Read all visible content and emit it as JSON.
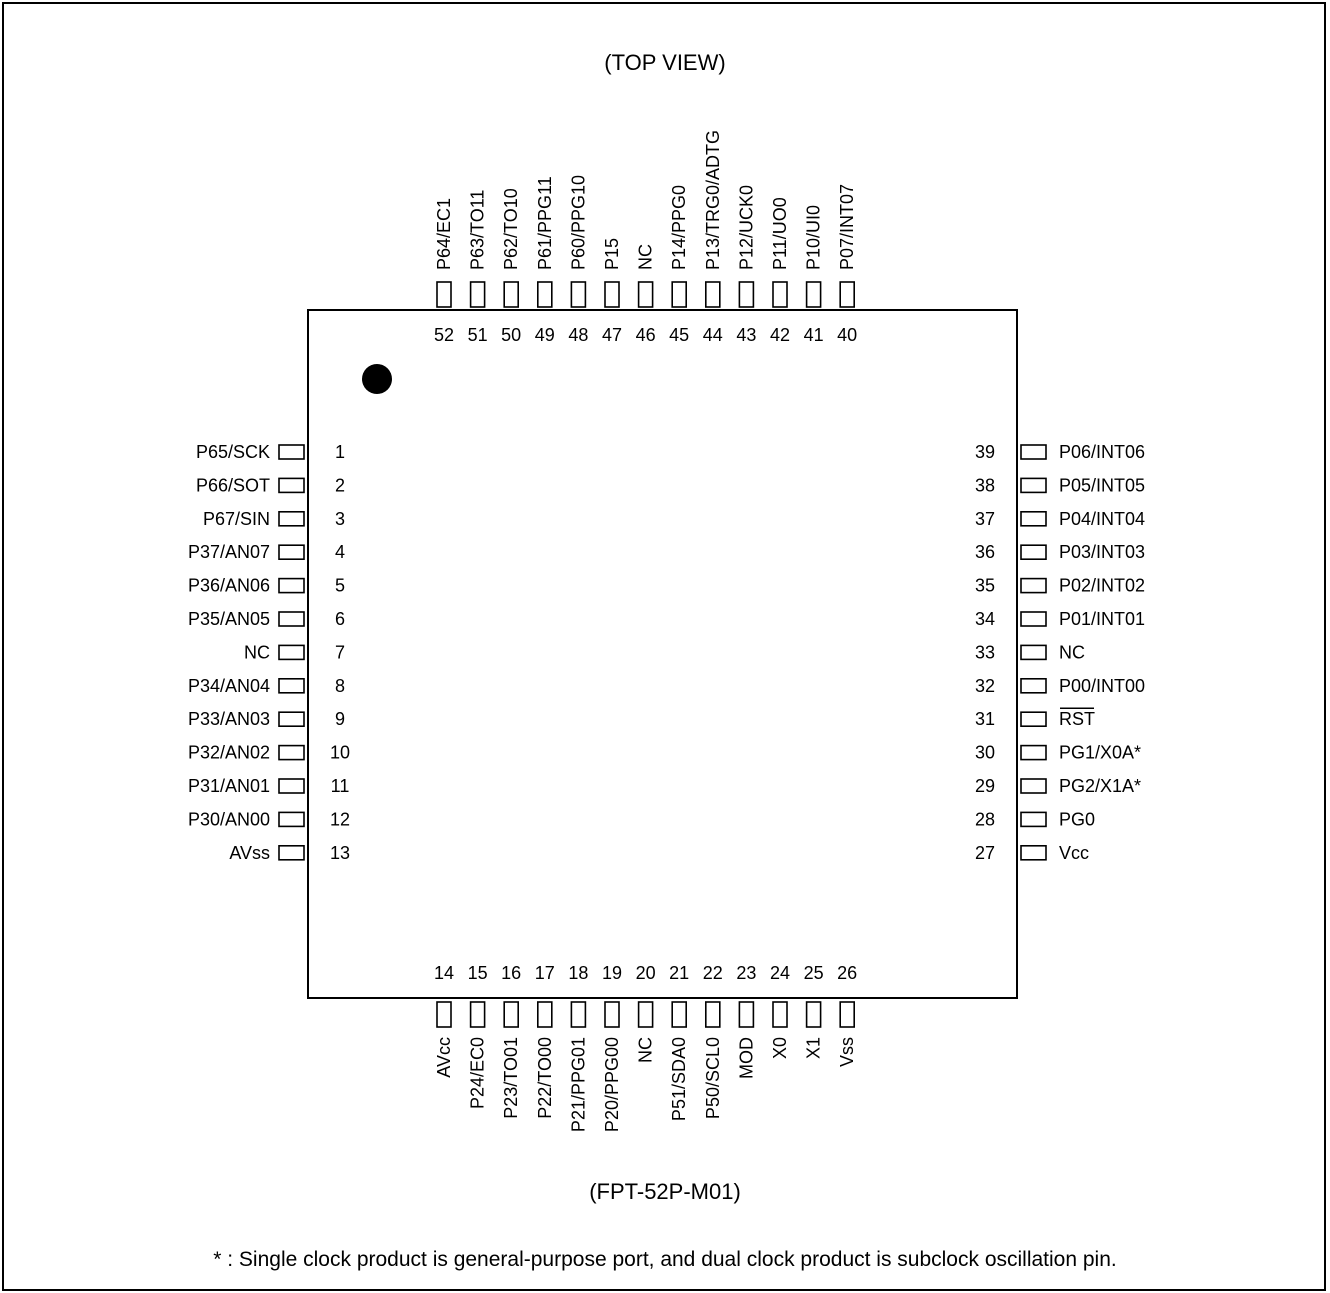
{
  "title": "(TOP VIEW)",
  "package": "(FPT-52P-M01)",
  "footnote": "* : Single clock product is general-purpose port, and dual clock product is subclock oscillation pin.",
  "pins": {
    "left": [
      {
        "num": "1",
        "name": "P65/SCK"
      },
      {
        "num": "2",
        "name": "P66/SOT"
      },
      {
        "num": "3",
        "name": "P67/SIN"
      },
      {
        "num": "4",
        "name": "P37/AN07"
      },
      {
        "num": "5",
        "name": "P36/AN06"
      },
      {
        "num": "6",
        "name": "P35/AN05"
      },
      {
        "num": "7",
        "name": "NC"
      },
      {
        "num": "8",
        "name": "P34/AN04"
      },
      {
        "num": "9",
        "name": "P33/AN03"
      },
      {
        "num": "10",
        "name": "P32/AN02"
      },
      {
        "num": "11",
        "name": "P31/AN01"
      },
      {
        "num": "12",
        "name": "P30/AN00"
      },
      {
        "num": "13",
        "name": "AVss"
      }
    ],
    "bottom": [
      {
        "num": "14",
        "name": "AVcc"
      },
      {
        "num": "15",
        "name": "P24/EC0"
      },
      {
        "num": "16",
        "name": "P23/TO01"
      },
      {
        "num": "17",
        "name": "P22/TO00"
      },
      {
        "num": "18",
        "name": "P21/PPG01"
      },
      {
        "num": "19",
        "name": "P20/PPG00"
      },
      {
        "num": "20",
        "name": "NC"
      },
      {
        "num": "21",
        "name": "P51/SDA0"
      },
      {
        "num": "22",
        "name": "P50/SCL0"
      },
      {
        "num": "23",
        "name": "MOD"
      },
      {
        "num": "24",
        "name": "X0"
      },
      {
        "num": "25",
        "name": "X1"
      },
      {
        "num": "26",
        "name": "Vss"
      }
    ],
    "right": [
      {
        "num": "39",
        "name": "P06/INT06"
      },
      {
        "num": "38",
        "name": "P05/INT05"
      },
      {
        "num": "37",
        "name": "P04/INT04"
      },
      {
        "num": "36",
        "name": "P03/INT03"
      },
      {
        "num": "35",
        "name": "P02/INT02"
      },
      {
        "num": "34",
        "name": "P01/INT01"
      },
      {
        "num": "33",
        "name": "NC"
      },
      {
        "num": "32",
        "name": "P00/INT00"
      },
      {
        "num": "31",
        "name": "RST",
        "overline": true
      },
      {
        "num": "30",
        "name": "PG1/X0A*"
      },
      {
        "num": "29",
        "name": "PG2/X1A*"
      },
      {
        "num": "28",
        "name": "PG0"
      },
      {
        "num": "27",
        "name": "Vcc"
      }
    ],
    "top": [
      {
        "num": "52",
        "name": "P64/EC1"
      },
      {
        "num": "51",
        "name": "P63/TO11"
      },
      {
        "num": "50",
        "name": "P62/TO10"
      },
      {
        "num": "49",
        "name": "P61/PPG11"
      },
      {
        "num": "48",
        "name": "P60/PPG10"
      },
      {
        "num": "47",
        "name": "P15"
      },
      {
        "num": "46",
        "name": "NC"
      },
      {
        "num": "45",
        "name": "P14/PPG0"
      },
      {
        "num": "44",
        "name": "P13/TRG0/ADTG"
      },
      {
        "num": "43",
        "name": "P12/UCK0"
      },
      {
        "num": "42",
        "name": "P11/UO0"
      },
      {
        "num": "41",
        "name": "P10/UI0"
      },
      {
        "num": "40",
        "name": "P07/INT07"
      }
    ]
  }
}
